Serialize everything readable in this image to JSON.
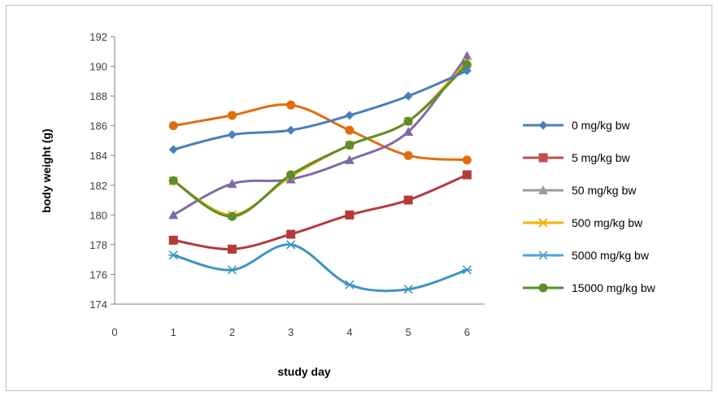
{
  "chart_data": {
    "type": "line",
    "title": "",
    "xlabel": "study day",
    "ylabel": "body weight (g)",
    "x": [
      1,
      2,
      3,
      4,
      5,
      6
    ],
    "x_ticks": [
      "0",
      "1",
      "2",
      "3",
      "4",
      "5",
      "6"
    ],
    "xlim": [
      0,
      6.3
    ],
    "ylim": [
      174,
      192
    ],
    "y_ticks": [
      "174",
      "176",
      "178",
      "180",
      "182",
      "184",
      "186",
      "188",
      "190",
      "192"
    ],
    "grid": false,
    "legend_position": "right",
    "smooth": true,
    "series": [
      {
        "name": "0 mg/kg bw",
        "color": "#4a7ebb",
        "marker": "diamond",
        "values": [
          184.4,
          185.4,
          185.7,
          186.7,
          188.0,
          189.7
        ]
      },
      {
        "name": "5 mg/kg bw",
        "color": "#e36c0a",
        "marker": "circle",
        "values": [
          186.0,
          186.7,
          187.4,
          185.7,
          184.0,
          183.7
        ]
      },
      {
        "name": "50 mg/kg bw",
        "color": "#7f6aa8",
        "marker": "triangle",
        "values": [
          180.0,
          182.1,
          182.4,
          183.7,
          185.6,
          190.7
        ]
      },
      {
        "name": "500 mg/kg bw",
        "color": "#f0a30a",
        "marker": "x",
        "values": [
          182.3,
          180.0,
          182.6,
          184.7,
          186.3,
          190.3
        ]
      },
      {
        "name": "5000 mg/kg bw",
        "color": "#3b95c4",
        "marker": "star",
        "values": [
          177.3,
          176.3,
          178.0,
          175.3,
          175.0,
          176.3
        ]
      },
      {
        "name": "15000 mg/kg bw",
        "color": "#5a8f29",
        "marker": "circle",
        "values": [
          182.3,
          179.9,
          182.7,
          184.7,
          186.3,
          190.1
        ]
      }
    ],
    "extra_series": [
      {
        "name": "",
        "color": "#b23b3b",
        "marker": "square",
        "values": [
          178.3,
          177.7,
          178.7,
          180.0,
          181.0,
          182.7
        ]
      }
    ],
    "legend_markers": [
      "diamond",
      "square",
      "triangle",
      "x",
      "star",
      "circle"
    ],
    "legend_colors": [
      "#4a7ebb",
      "#c0504d",
      "#9b9b9b",
      "#f0b400",
      "#4aa3d6",
      "#5a8f29"
    ]
  }
}
